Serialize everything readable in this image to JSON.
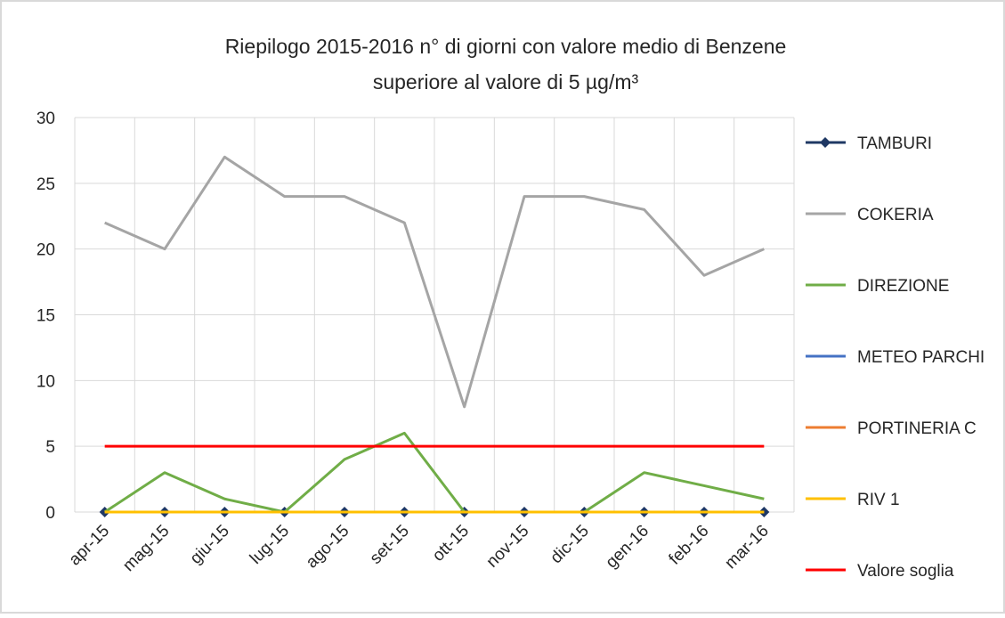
{
  "chart_data": {
    "type": "line",
    "title": [
      "Riepilogo 2015-2016 n° di giorni con valore medio di Benzene",
      "superiore al valore di 5 µg/m³"
    ],
    "categories": [
      "apr-15",
      "mag-15",
      "giu-15",
      "lug-15",
      "ago-15",
      "set-15",
      "ott-15",
      "nov-15",
      "dic-15",
      "gen-16",
      "feb-16",
      "mar-16"
    ],
    "series": [
      {
        "name": "TAMBURI",
        "color": "#1f3864",
        "marker": "diamond",
        "values": [
          0,
          0,
          0,
          0,
          0,
          0,
          0,
          0,
          0,
          0,
          0,
          0
        ]
      },
      {
        "name": "COKERIA",
        "color": "#a5a5a5",
        "values": [
          22,
          20,
          27,
          24,
          24,
          22,
          8,
          24,
          24,
          23,
          18,
          20
        ]
      },
      {
        "name": "DIREZIONE",
        "color": "#70ad47",
        "values": [
          0,
          3,
          1,
          0,
          4,
          6,
          0,
          0,
          0,
          3,
          2,
          1
        ]
      },
      {
        "name": "METEO PARCHI",
        "color": "#4472c4",
        "values": [
          0,
          0,
          0,
          0,
          0,
          0,
          0,
          0,
          0,
          0,
          0,
          0
        ]
      },
      {
        "name": "PORTINERIA C",
        "color": "#ed7d31",
        "values": [
          0,
          0,
          0,
          0,
          0,
          0,
          0,
          0,
          0,
          0,
          0,
          0
        ]
      },
      {
        "name": "RIV 1",
        "color": "#ffc000",
        "values": [
          0,
          0,
          0,
          0,
          0,
          0,
          0,
          0,
          0,
          0,
          0,
          0
        ]
      },
      {
        "name": "Valore soglia",
        "color": "#ff0000",
        "values": [
          5,
          5,
          5,
          5,
          5,
          5,
          5,
          5,
          5,
          5,
          5,
          5
        ]
      }
    ],
    "ylim": [
      0,
      30
    ],
    "yticks": [
      0,
      5,
      10,
      15,
      20,
      25,
      30
    ],
    "grid": true,
    "legend": "right"
  }
}
